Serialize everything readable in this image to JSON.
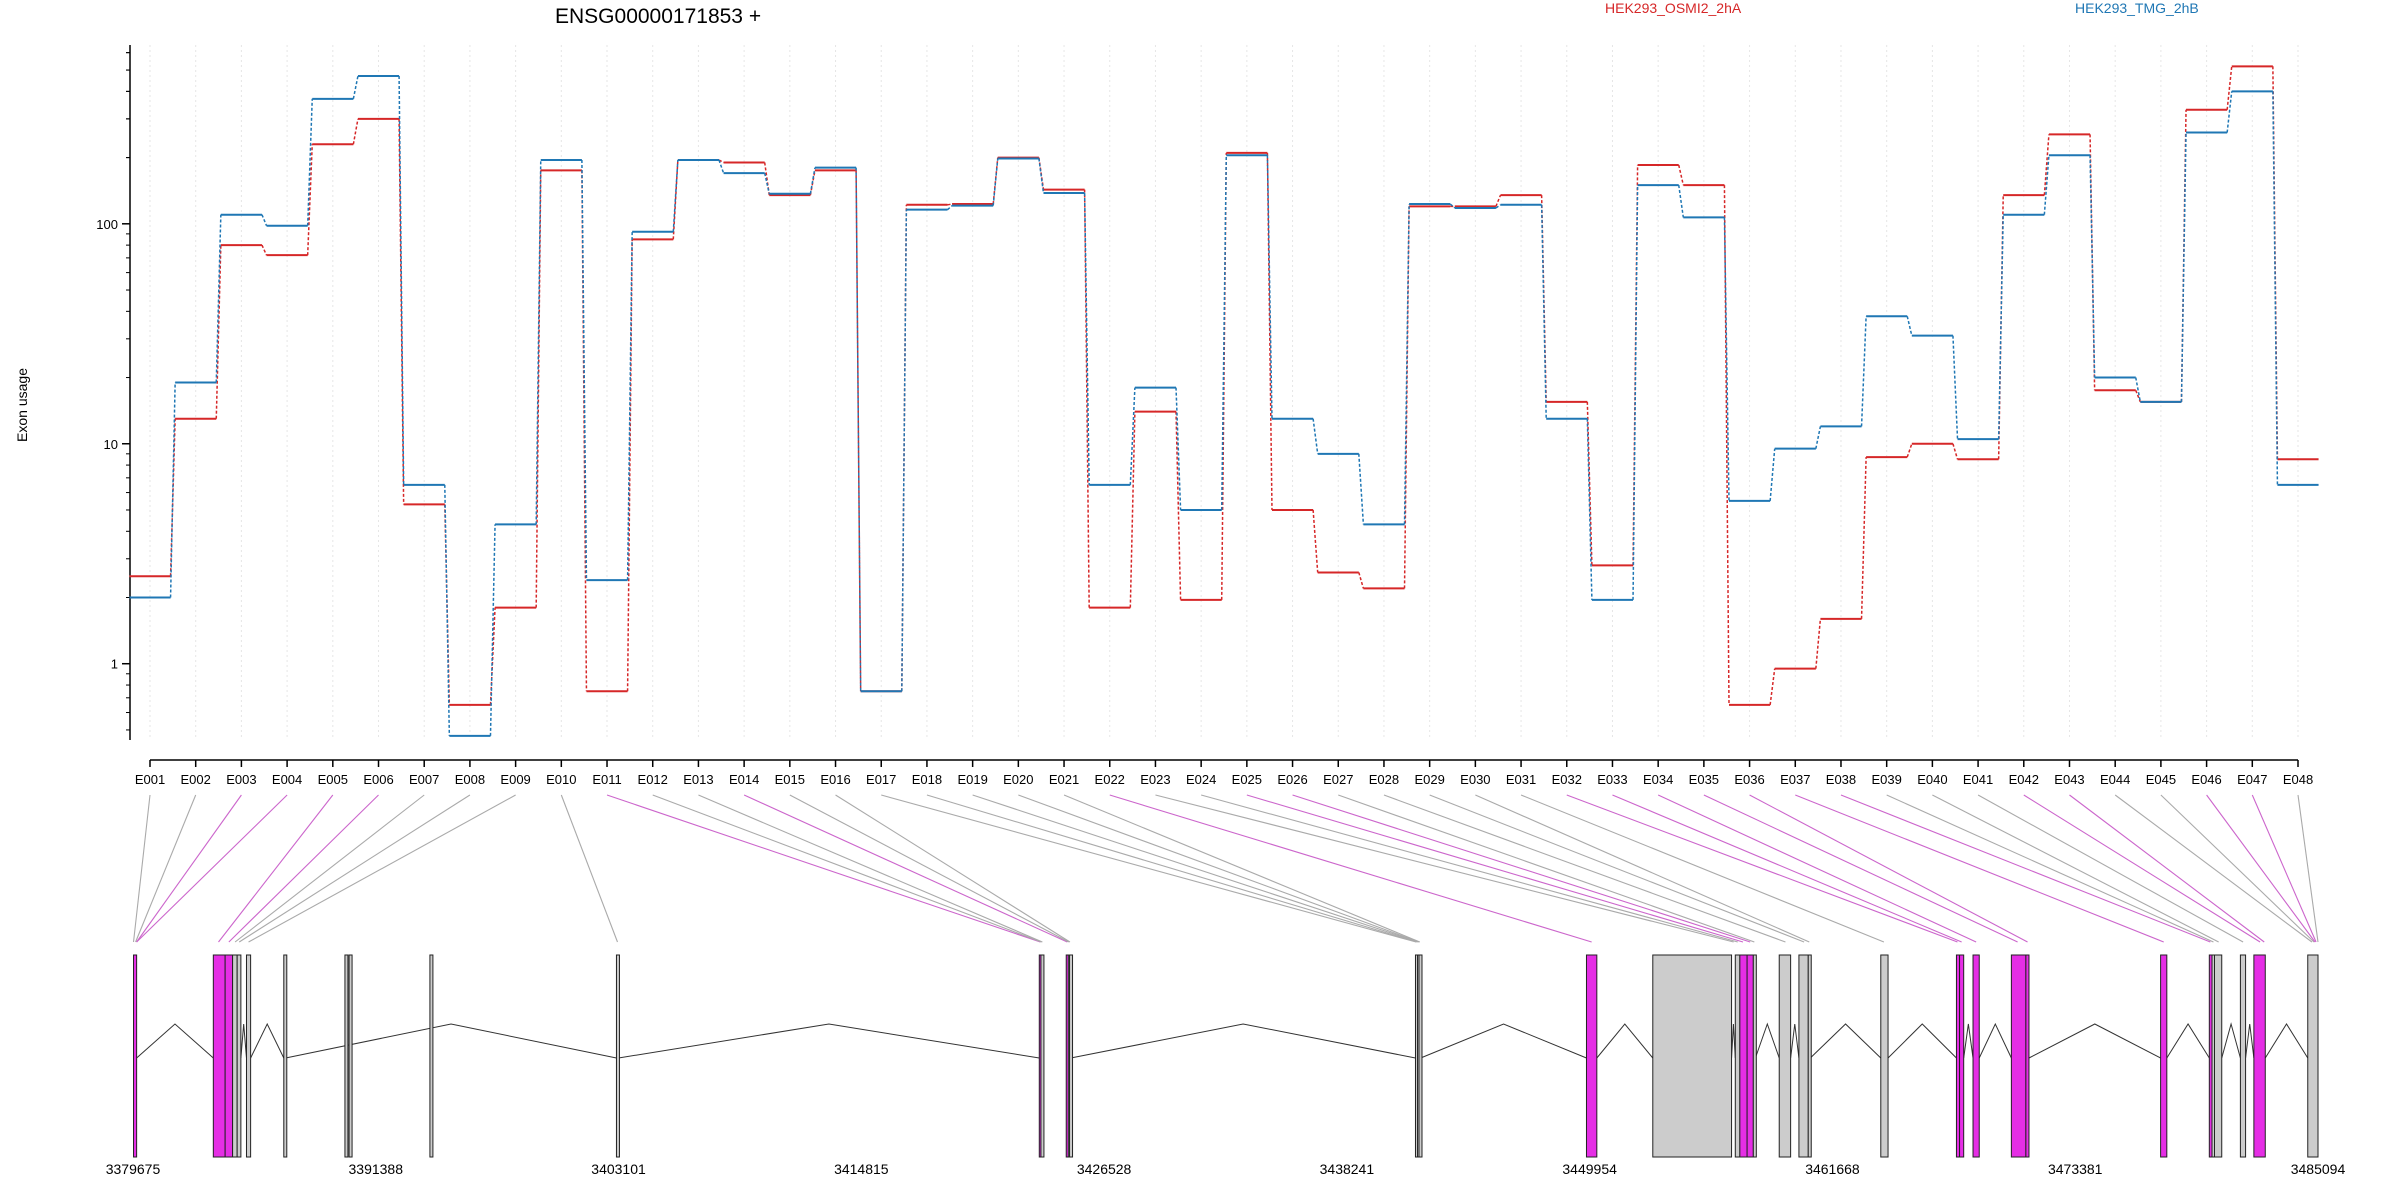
{
  "chart_data": {
    "type": "line",
    "title": "ENSG00000171853 +",
    "ylabel": "Exon usage",
    "yscale": "log",
    "ylim": [
      0.45,
      650
    ],
    "yticks": [
      1,
      10,
      100
    ],
    "ytick_labels": [
      "1",
      "10",
      "100"
    ],
    "grid": "vertical dotted per exon",
    "legend_position": "top",
    "categories": [
      "E001",
      "E002",
      "E003",
      "E004",
      "E005",
      "E006",
      "E007",
      "E008",
      "E009",
      "E010",
      "E011",
      "E012",
      "E013",
      "E014",
      "E015",
      "E016",
      "E017",
      "E018",
      "E019",
      "E020",
      "E021",
      "E022",
      "E023",
      "E024",
      "E025",
      "E026",
      "E027",
      "E028",
      "E029",
      "E030",
      "E031",
      "E032",
      "E033",
      "E034",
      "E035",
      "E036",
      "E037",
      "E038",
      "E039",
      "E040",
      "E041",
      "E042",
      "E043",
      "E044",
      "E045",
      "E046",
      "E047",
      "E048"
    ],
    "series": [
      {
        "name": "HEK293_OSMI2_2hA",
        "color": "#d62728",
        "values": [
          2.5,
          13,
          80,
          72,
          230,
          300,
          5.3,
          0.65,
          1.8,
          175,
          0.75,
          85,
          195,
          190,
          135,
          175,
          0.75,
          122,
          123,
          200,
          143,
          1.8,
          14,
          1.95,
          210,
          5,
          2.6,
          2.2,
          120,
          120,
          135,
          15.5,
          2.8,
          185,
          150,
          0.65,
          0.95,
          1.6,
          8.7,
          10,
          8.5,
          135,
          255,
          17.5,
          15.5,
          330,
          520,
          8.5
        ]
      },
      {
        "name": "HEK293_TMG_2hB",
        "color": "#1f77b4",
        "values": [
          2,
          19,
          110,
          98,
          370,
          470,
          6.5,
          0.47,
          4.3,
          195,
          2.4,
          92,
          195,
          170,
          137,
          180,
          0.75,
          116,
          121,
          198,
          138,
          6.5,
          18,
          5,
          205,
          13,
          9,
          4.3,
          123,
          118,
          122,
          13,
          1.95,
          150,
          107,
          5.5,
          9.5,
          12,
          38,
          31,
          10.5,
          110,
          205,
          20,
          15.5,
          260,
          400,
          6.5
        ]
      }
    ],
    "gene_model": {
      "coord_ticks": [
        "3379675",
        "3391388",
        "3403101",
        "3414815",
        "3426528",
        "3438241",
        "3449954",
        "3461668",
        "3473381",
        "3485094"
      ],
      "coord_range": [
        3379675,
        3485094
      ],
      "exon_color_highlight": "#e52ee5",
      "exon_color_plain": "#cccccc",
      "exons": [
        {
          "id": "E001",
          "start": 3379700,
          "end": 3379850,
          "highlight": true
        },
        {
          "id": "E002",
          "start": 3383550,
          "end": 3384120,
          "highlight": true
        },
        {
          "id": "E003",
          "start": 3384120,
          "end": 3384480,
          "highlight": true
        },
        {
          "id": "E004",
          "start": 3384480,
          "end": 3384700,
          "highlight": false
        },
        {
          "id": "E005",
          "start": 3384700,
          "end": 3384880,
          "highlight": false
        },
        {
          "id": "E006",
          "start": 3385150,
          "end": 3385350,
          "highlight": false
        },
        {
          "id": "E007",
          "start": 3386950,
          "end": 3387040,
          "highlight": false
        },
        {
          "id": "E008",
          "start": 3389900,
          "end": 3389980,
          "highlight": false
        },
        {
          "id": "E009",
          "start": 3394000,
          "end": 3394100,
          "highlight": false
        },
        {
          "id": "E010",
          "start": 3390100,
          "end": 3390200,
          "highlight": false
        },
        {
          "id": "E011",
          "start": 3403000,
          "end": 3403100,
          "highlight": false
        },
        {
          "id": "E012",
          "start": 3423400,
          "end": 3423480,
          "highlight": true
        },
        {
          "id": "E013",
          "start": 3423480,
          "end": 3423580,
          "highlight": false
        },
        {
          "id": "E014",
          "start": 3424700,
          "end": 3424800,
          "highlight": true
        },
        {
          "id": "E015",
          "start": 3424800,
          "end": 3424860,
          "highlight": false
        },
        {
          "id": "E016",
          "start": 3424860,
          "end": 3424920,
          "highlight": false
        },
        {
          "id": "E017",
          "start": 3441550,
          "end": 3441650,
          "highlight": false
        },
        {
          "id": "E018",
          "start": 3441650,
          "end": 3441720,
          "highlight": false
        },
        {
          "id": "E019",
          "start": 3441720,
          "end": 3441800,
          "highlight": false
        },
        {
          "id": "E020",
          "start": 3449800,
          "end": 3450300,
          "highlight": true
        },
        {
          "id": "E021",
          "start": 3453000,
          "end": 3456800,
          "highlight": false
        },
        {
          "id": "E022",
          "start": 3456980,
          "end": 3457200,
          "highlight": false
        },
        {
          "id": "E023",
          "start": 3457200,
          "end": 3457550,
          "highlight": true
        },
        {
          "id": "E024",
          "start": 3457550,
          "end": 3457850,
          "highlight": true
        },
        {
          "id": "E025",
          "start": 3457850,
          "end": 3457950,
          "highlight": false
        },
        {
          "id": "E026",
          "start": 3459100,
          "end": 3459650,
          "highlight": false
        },
        {
          "id": "E027",
          "start": 3460050,
          "end": 3460500,
          "highlight": false
        },
        {
          "id": "E028",
          "start": 3460500,
          "end": 3460600,
          "highlight": false
        },
        {
          "id": "E029",
          "start": 3464000,
          "end": 3464350,
          "highlight": false
        },
        {
          "id": "E030",
          "start": 3467650,
          "end": 3467800,
          "highlight": true
        },
        {
          "id": "E031",
          "start": 3467800,
          "end": 3468000,
          "highlight": true
        },
        {
          "id": "E032",
          "start": 3468450,
          "end": 3468750,
          "highlight": true
        },
        {
          "id": "E033",
          "start": 3470300,
          "end": 3471000,
          "highlight": true
        },
        {
          "id": "E034",
          "start": 3471000,
          "end": 3471150,
          "highlight": true
        },
        {
          "id": "E035",
          "start": 3477500,
          "end": 3477800,
          "highlight": true
        },
        {
          "id": "E036",
          "start": 3479850,
          "end": 3479980,
          "highlight": true
        },
        {
          "id": "E037",
          "start": 3479980,
          "end": 3480100,
          "highlight": false
        },
        {
          "id": "E038",
          "start": 3480100,
          "end": 3480450,
          "highlight": false
        },
        {
          "id": "E039",
          "start": 3481350,
          "end": 3481600,
          "highlight": false
        },
        {
          "id": "E040",
          "start": 3482000,
          "end": 3482550,
          "highlight": true
        },
        {
          "id": "E041",
          "start": 3484600,
          "end": 3485094,
          "highlight": false
        }
      ],
      "introns": [
        [
          3379850,
          3383550
        ],
        [
          3384880,
          3385150
        ],
        [
          3385350,
          3386950
        ],
        [
          3387040,
          3403000
        ],
        [
          3403100,
          3423400
        ],
        [
          3424920,
          3441550
        ],
        [
          3441800,
          3449800
        ],
        [
          3450300,
          3453000
        ],
        [
          3456800,
          3456980
        ],
        [
          3457950,
          3459100
        ],
        [
          3459650,
          3460050
        ],
        [
          3460600,
          3464000
        ],
        [
          3464350,
          3467650
        ],
        [
          3468000,
          3468450
        ],
        [
          3468750,
          3470300
        ],
        [
          3471150,
          3477500
        ],
        [
          3477800,
          3479850
        ],
        [
          3480450,
          3481350
        ],
        [
          3481600,
          3482000
        ],
        [
          3482550,
          3484600
        ]
      ],
      "connectors": [
        {
          "exon": "E001",
          "to": 3379700,
          "color": "#aaaaaa"
        },
        {
          "exon": "E002",
          "to": 3379800,
          "color": "#aaaaaa"
        },
        {
          "exon": "E003",
          "to": 3379850,
          "color": "#cc66cc"
        },
        {
          "exon": "E004",
          "to": 3379850,
          "color": "#cc66cc"
        },
        {
          "exon": "E005",
          "to": 3383800,
          "color": "#cc66cc"
        },
        {
          "exon": "E006",
          "to": 3384300,
          "color": "#cc66cc"
        },
        {
          "exon": "E007",
          "to": 3384600,
          "color": "#aaaaaa"
        },
        {
          "exon": "E008",
          "to": 3384800,
          "color": "#aaaaaa"
        },
        {
          "exon": "E009",
          "to": 3385250,
          "color": "#aaaaaa"
        },
        {
          "exon": "E010",
          "to": 3403050,
          "color": "#aaaaaa"
        },
        {
          "exon": "E011",
          "to": 3423450,
          "color": "#cc66cc"
        },
        {
          "exon": "E012",
          "to": 3423500,
          "color": "#aaaaaa"
        },
        {
          "exon": "E013",
          "to": 3423550,
          "color": "#aaaaaa"
        },
        {
          "exon": "E014",
          "to": 3424750,
          "color": "#cc66cc"
        },
        {
          "exon": "E015",
          "to": 3424820,
          "color": "#aaaaaa"
        },
        {
          "exon": "E016",
          "to": 3424880,
          "color": "#aaaaaa"
        },
        {
          "exon": "E017",
          "to": 3441580,
          "color": "#aaaaaa"
        },
        {
          "exon": "E018",
          "to": 3441620,
          "color": "#aaaaaa"
        },
        {
          "exon": "E019",
          "to": 3441680,
          "color": "#aaaaaa"
        },
        {
          "exon": "E020",
          "to": 3441720,
          "color": "#aaaaaa"
        },
        {
          "exon": "E021",
          "to": 3441760,
          "color": "#aaaaaa"
        },
        {
          "exon": "E022",
          "to": 3450050,
          "color": "#cc66cc"
        },
        {
          "exon": "E023",
          "to": 3456900,
          "color": "#aaaaaa"
        },
        {
          "exon": "E024",
          "to": 3457100,
          "color": "#aaaaaa"
        },
        {
          "exon": "E025",
          "to": 3457350,
          "color": "#cc66cc"
        },
        {
          "exon": "E026",
          "to": 3457700,
          "color": "#cc66cc"
        },
        {
          "exon": "E027",
          "to": 3457900,
          "color": "#aaaaaa"
        },
        {
          "exon": "E028",
          "to": 3459400,
          "color": "#aaaaaa"
        },
        {
          "exon": "E029",
          "to": 3460300,
          "color": "#aaaaaa"
        },
        {
          "exon": "E030",
          "to": 3460550,
          "color": "#aaaaaa"
        },
        {
          "exon": "E031",
          "to": 3464150,
          "color": "#aaaaaa"
        },
        {
          "exon": "E032",
          "to": 3467700,
          "color": "#cc66cc"
        },
        {
          "exon": "E033",
          "to": 3467900,
          "color": "#cc66cc"
        },
        {
          "exon": "E034",
          "to": 3468600,
          "color": "#cc66cc"
        },
        {
          "exon": "E035",
          "to": 3470600,
          "color": "#cc66cc"
        },
        {
          "exon": "E036",
          "to": 3471080,
          "color": "#cc66cc"
        },
        {
          "exon": "E037",
          "to": 3477650,
          "color": "#cc66cc"
        },
        {
          "exon": "E038",
          "to": 3479900,
          "color": "#cc66cc"
        },
        {
          "exon": "E039",
          "to": 3480050,
          "color": "#aaaaaa"
        },
        {
          "exon": "E040",
          "to": 3480300,
          "color": "#aaaaaa"
        },
        {
          "exon": "E041",
          "to": 3481480,
          "color": "#aaaaaa"
        },
        {
          "exon": "E042",
          "to": 3482300,
          "color": "#cc66cc"
        },
        {
          "exon": "E043",
          "to": 3482500,
          "color": "#cc66cc"
        },
        {
          "exon": "E044",
          "to": 3484800,
          "color": "#aaaaaa"
        },
        {
          "exon": "E045",
          "to": 3484900,
          "color": "#aaaaaa"
        },
        {
          "exon": "E046",
          "to": 3484950,
          "color": "#cc66cc"
        },
        {
          "exon": "E047",
          "to": 3485000,
          "color": "#cc66cc"
        },
        {
          "exon": "E048",
          "to": 3485094,
          "color": "#aaaaaa"
        }
      ]
    }
  }
}
